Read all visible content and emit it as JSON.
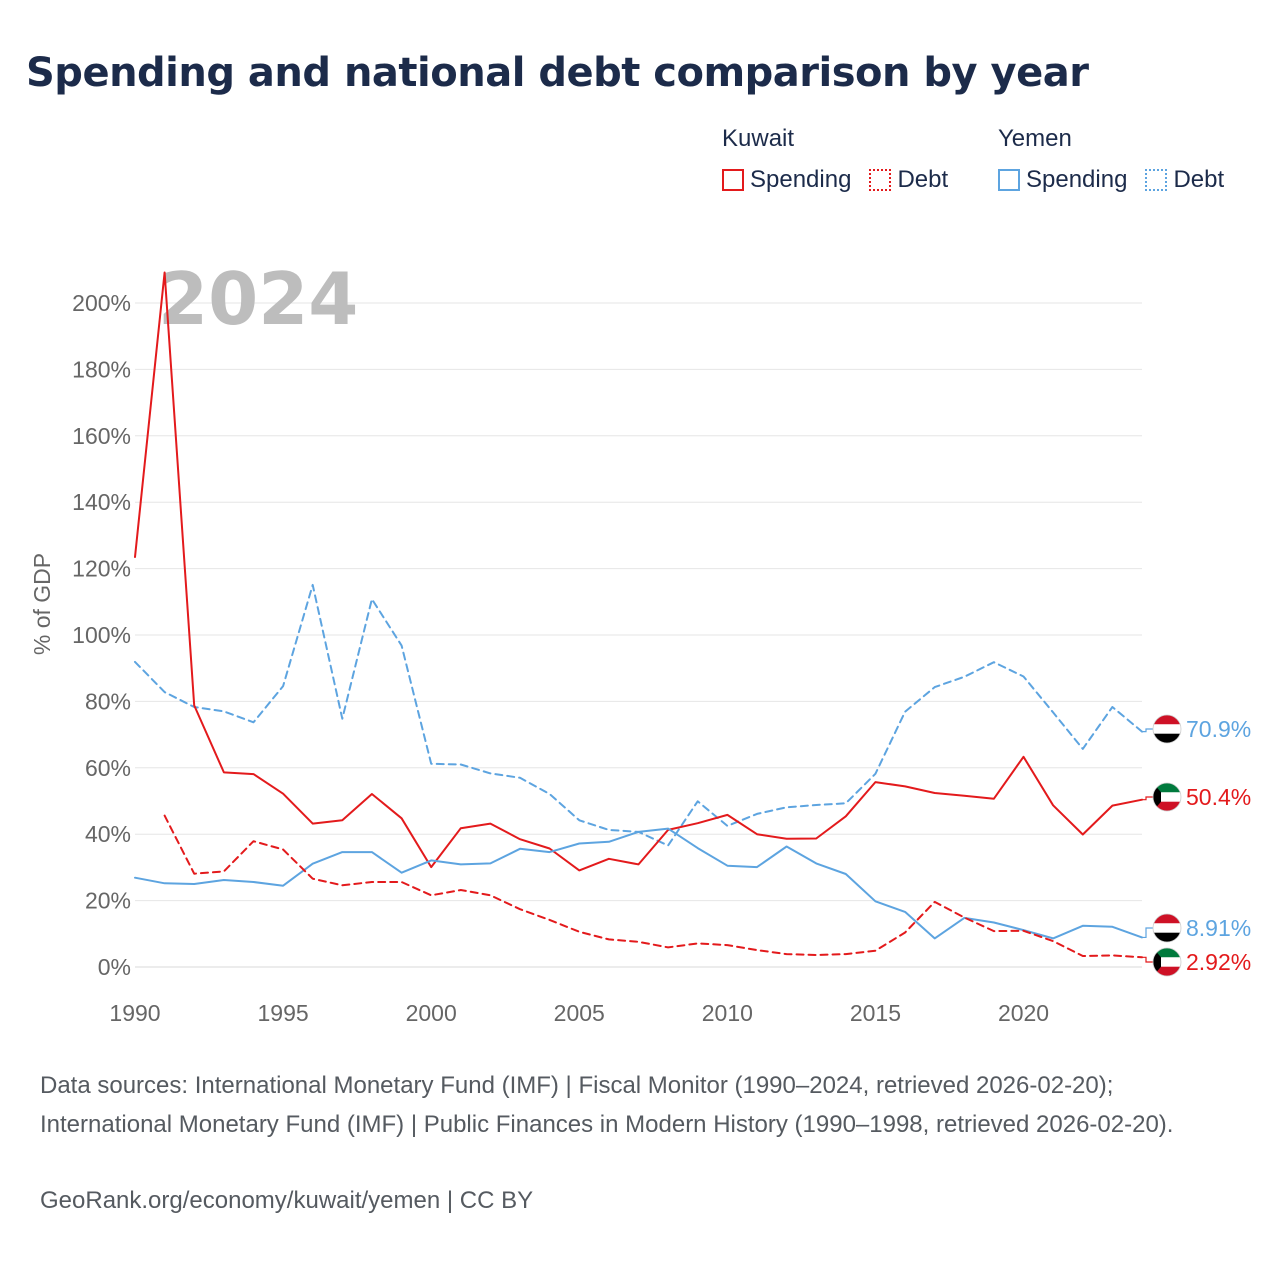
{
  "title": "Spending and national debt comparison by year",
  "legend": {
    "groups": [
      {
        "name": "Kuwait",
        "color": "#e31a1c",
        "items": [
          {
            "label": "Spending",
            "style": "solid"
          },
          {
            "label": "Debt",
            "style": "dotted"
          }
        ]
      },
      {
        "name": "Yemen",
        "color": "#5da4e0",
        "items": [
          {
            "label": "Spending",
            "style": "solid"
          },
          {
            "label": "Debt",
            "style": "dotted"
          }
        ]
      }
    ]
  },
  "chart_data": {
    "type": "line",
    "year_label": "2024",
    "ylabel": "% of GDP",
    "xlim": [
      1990,
      2024
    ],
    "ylim": [
      0,
      210
    ],
    "xticks": [
      1990,
      1995,
      2000,
      2005,
      2010,
      2015,
      2020
    ],
    "xtick_labels": [
      "1990",
      "1995",
      "2000",
      "2005",
      "2010",
      "2015",
      "2020"
    ],
    "yticks": [
      0,
      20,
      40,
      60,
      80,
      100,
      120,
      140,
      160,
      180,
      200
    ],
    "ytick_labels": [
      "0%",
      "20%",
      "40%",
      "60%",
      "80%",
      "100%",
      "120%",
      "140%",
      "160%",
      "180%",
      "200%"
    ],
    "series": [
      {
        "name": "Yemen Debt",
        "country": "Yemen",
        "metric": "Debt",
        "color": "#5da4e0",
        "dashed": true,
        "x": [
          1990,
          1991,
          1992,
          1993,
          1994,
          1995,
          1996,
          1997,
          1998,
          1999,
          2000,
          2001,
          2002,
          2003,
          2004,
          2005,
          2006,
          2007,
          2008,
          2009,
          2010,
          2011,
          2012,
          2013,
          2014,
          2015,
          2016,
          2017,
          2018,
          2019,
          2020,
          2021,
          2022,
          2023,
          2024
        ],
        "values": [
          91.9,
          82.8,
          78.3,
          77,
          73.7,
          84.6,
          115.1,
          74.8,
          110.8,
          96.8,
          61.2,
          61,
          58.3,
          57,
          52.1,
          44.2,
          41.3,
          40.7,
          36.6,
          49.9,
          42.5,
          46.1,
          48.1,
          48.8,
          49.3,
          58.2,
          76.9,
          84.3,
          87.4,
          91.8,
          87.5,
          76.7,
          65.7,
          78.3,
          70.9
        ],
        "end_label": "70.9%"
      },
      {
        "name": "Kuwait Spending",
        "country": "Kuwait",
        "metric": "Spending",
        "color": "#e31a1c",
        "dashed": false,
        "x": [
          1990,
          1991,
          1992,
          1993,
          1994,
          1995,
          1996,
          1997,
          1998,
          1999,
          2000,
          2001,
          2002,
          2003,
          2004,
          2005,
          2006,
          2007,
          2008,
          2009,
          2010,
          2011,
          2012,
          2013,
          2014,
          2015,
          2016,
          2017,
          2018,
          2019,
          2020,
          2021,
          2022,
          2023,
          2024
        ],
        "values": [
          123.5,
          209.2,
          78.8,
          58.6,
          58.1,
          52.2,
          43.2,
          44.2,
          52.1,
          44.8,
          30.1,
          41.8,
          43.2,
          38.5,
          35.7,
          29.1,
          32.6,
          30.9,
          41.3,
          43.3,
          45.8,
          40,
          38.6,
          38.7,
          45.4,
          55.7,
          54.4,
          52.4,
          51.6,
          50.7,
          63.3,
          48.7,
          39.9,
          48.6,
          50.4
        ],
        "end_label": "50.4%"
      },
      {
        "name": "Yemen Spending",
        "country": "Yemen",
        "metric": "Spending",
        "color": "#5da4e0",
        "dashed": false,
        "x": [
          1990,
          1991,
          1992,
          1993,
          1994,
          1995,
          1996,
          1997,
          1998,
          1999,
          2000,
          2001,
          2002,
          2003,
          2004,
          2005,
          2006,
          2007,
          2008,
          2009,
          2010,
          2011,
          2012,
          2013,
          2014,
          2015,
          2016,
          2017,
          2018,
          2019,
          2020,
          2021,
          2022,
          2023,
          2024
        ],
        "values": [
          26.9,
          25.2,
          25,
          26.2,
          25.6,
          24.5,
          31.1,
          34.6,
          34.6,
          28.4,
          32.1,
          30.9,
          31.2,
          35.6,
          34.6,
          37.2,
          37.7,
          40.7,
          41.7,
          35.8,
          30.5,
          30.1,
          36.3,
          31.2,
          28,
          19.8,
          16.6,
          8.6,
          14.8,
          13.4,
          11.1,
          8.6,
          12.4,
          12.1,
          8.91
        ],
        "end_label": "8.91%"
      },
      {
        "name": "Kuwait Debt",
        "country": "Kuwait",
        "metric": "Debt",
        "color": "#e31a1c",
        "dashed": true,
        "x": [
          1991,
          1992,
          1993,
          1994,
          1995,
          1996,
          1997,
          1998,
          1999,
          2000,
          2001,
          2002,
          2003,
          2004,
          2005,
          2006,
          2007,
          2008,
          2009,
          2010,
          2011,
          2012,
          2013,
          2014,
          2015,
          2016,
          2017,
          2018,
          2019,
          2020,
          2021,
          2022,
          2023,
          2024
        ],
        "values": [
          45.6,
          28.1,
          28.8,
          37.9,
          35.4,
          26.6,
          24.6,
          25.6,
          25.6,
          21.6,
          23.2,
          21.6,
          17.4,
          14.2,
          10.6,
          8.3,
          7.6,
          5.9,
          7.1,
          6.6,
          5.1,
          3.9,
          3.6,
          3.9,
          4.9,
          10.4,
          19.6,
          14.9,
          10.8,
          10.9,
          7.8,
          3.3,
          3.5,
          2.92
        ],
        "end_label": "2.92%"
      }
    ]
  },
  "sources_text": "Data sources: International Monetary Fund (IMF) | Fiscal Monitor (1990–2024, retrieved 2026-02-20); International Monetary Fund (IMF) | Public Finances in Modern History (1990–1998, retrieved 2026-02-20).",
  "credit_text": "GeoRank.org/economy/kuwait/yemen | CC BY"
}
